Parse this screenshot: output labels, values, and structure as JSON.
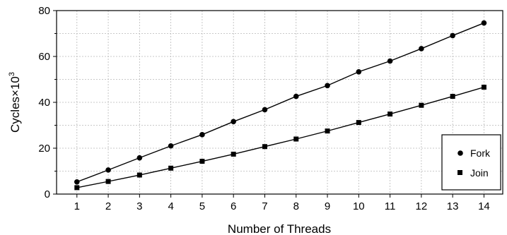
{
  "chart_data": {
    "type": "line",
    "xlabel": "Number of Threads",
    "ylabel": "Cycles",
    "ylabel_multiplier_base": "×10",
    "ylabel_multiplier_exponent": "3",
    "x": [
      1,
      2,
      3,
      4,
      5,
      6,
      7,
      8,
      9,
      10,
      11,
      12,
      13,
      14
    ],
    "xlim": [
      0.35,
      14.6
    ],
    "ylim": [
      0,
      80
    ],
    "yticks": [
      0,
      20,
      40,
      60,
      80
    ],
    "grid": true,
    "legend_position": "bottom-right",
    "series": [
      {
        "name": "Fork",
        "marker": "circle",
        "values": [
          5.3,
          10.5,
          15.8,
          21.0,
          25.9,
          31.6,
          36.8,
          42.6,
          47.3,
          53.3,
          58.0,
          63.4,
          69.1,
          74.6
        ]
      },
      {
        "name": "Join",
        "marker": "square",
        "values": [
          2.8,
          5.5,
          8.3,
          11.3,
          14.3,
          17.4,
          20.7,
          24.0,
          27.5,
          31.2,
          34.9,
          38.7,
          42.6,
          46.6
        ]
      }
    ]
  }
}
